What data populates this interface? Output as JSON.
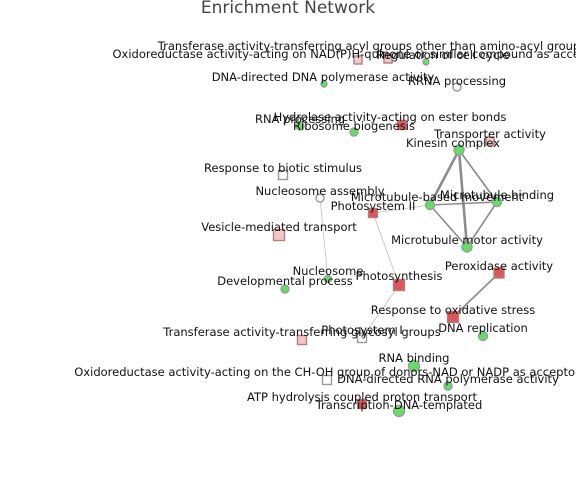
{
  "title": "Enrichment Network",
  "colors": {
    "green_fill": "#66dd66",
    "green_stroke": "#8aa88a",
    "red_fill": "#e05555",
    "red_stroke": "#b08080",
    "pink_fill": "#f5c6c6",
    "edge": "#808080"
  },
  "nodes": [
    {
      "id": "n1",
      "label": "Transferase activity-transferring acyl groups other than amino-acyl groups",
      "shape": "square",
      "color": "pink"
    },
    {
      "id": "n2",
      "label": "Oxidoreductase activity-acting on NAD(P)H-quinone or similar compound as acceptor",
      "shape": "square",
      "color": "pink"
    },
    {
      "id": "n3",
      "label": "Regulation of cell cycle",
      "shape": "circle",
      "color": "green"
    },
    {
      "id": "n4",
      "label": "DNA-directed DNA polymerase activity",
      "shape": "circle",
      "color": "green"
    },
    {
      "id": "n5",
      "label": "RRNA processing",
      "shape": "circle",
      "color": "white"
    },
    {
      "id": "n6",
      "label": "RNA processing",
      "shape": "circle",
      "color": "green"
    },
    {
      "id": "n7",
      "label": "Hydrolase activity-acting on ester bonds",
      "shape": "square",
      "color": "red"
    },
    {
      "id": "n8",
      "label": "Ribosome biogenesis",
      "shape": "circle",
      "color": "green"
    },
    {
      "id": "n9",
      "label": "Transporter activity",
      "shape": "square",
      "color": "pink"
    },
    {
      "id": "n10",
      "label": "Kinesin complex",
      "shape": "circle",
      "color": "green"
    },
    {
      "id": "n11",
      "label": "Response to biotic stimulus",
      "shape": "square",
      "color": "white"
    },
    {
      "id": "n12",
      "label": "Nucleosome assembly",
      "shape": "circle",
      "color": "white"
    },
    {
      "id": "n13",
      "label": "Microtubule-based movement",
      "shape": "circle",
      "color": "green"
    },
    {
      "id": "n14",
      "label": "Microtubule binding",
      "shape": "circle",
      "color": "green"
    },
    {
      "id": "n15",
      "label": "Photosystem II",
      "shape": "square",
      "color": "red"
    },
    {
      "id": "n16",
      "label": "Vesicle-mediated transport",
      "shape": "square",
      "color": "pink"
    },
    {
      "id": "n17",
      "label": "Microtubule motor activity",
      "shape": "circle",
      "color": "green"
    },
    {
      "id": "n18",
      "label": "Peroxidase activity",
      "shape": "square",
      "color": "red"
    },
    {
      "id": "n19",
      "label": "Nucleosome",
      "shape": "circle",
      "color": "green"
    },
    {
      "id": "n20",
      "label": "Photosynthesis",
      "shape": "square",
      "color": "red"
    },
    {
      "id": "n21",
      "label": "Developmental process",
      "shape": "circle",
      "color": "green"
    },
    {
      "id": "n22",
      "label": "Response to oxidative stress",
      "shape": "square",
      "color": "red"
    },
    {
      "id": "n23",
      "label": "DNA replication",
      "shape": "circle",
      "color": "green"
    },
    {
      "id": "n24",
      "label": "Transferase activity-transferring glycosyl groups",
      "shape": "square",
      "color": "pink"
    },
    {
      "id": "n25",
      "label": "Photosystem I",
      "shape": "square",
      "color": "white"
    },
    {
      "id": "n26",
      "label": "RNA binding",
      "shape": "circle",
      "color": "green"
    },
    {
      "id": "n27",
      "label": "Oxidoreductase activity-acting on the CH-OH group of donors-NAD or NADP as acceptor",
      "shape": "square",
      "color": "white"
    },
    {
      "id": "n28",
      "label": "DNA-directed RNA polymerase activity",
      "shape": "circle",
      "color": "green"
    },
    {
      "id": "n29",
      "label": "ATP hydrolysis coupled proton transport",
      "shape": "square",
      "color": "red"
    },
    {
      "id": "n30",
      "label": "Transcription-DNA-templated",
      "shape": "circle",
      "color": "green"
    }
  ],
  "edges": [
    {
      "source": "n10",
      "target": "n13",
      "weight": 3
    },
    {
      "source": "n10",
      "target": "n14",
      "weight": 2
    },
    {
      "source": "n10",
      "target": "n17",
      "weight": 3
    },
    {
      "source": "n13",
      "target": "n14",
      "weight": 2
    },
    {
      "source": "n13",
      "target": "n17",
      "weight": 2
    },
    {
      "source": "n14",
      "target": "n17",
      "weight": 2
    },
    {
      "source": "n10",
      "target": "n9",
      "weight": 1
    },
    {
      "source": "n14",
      "target": "n10",
      "weight": 1
    },
    {
      "source": "n15",
      "target": "n20",
      "weight": 1
    },
    {
      "source": "n20",
      "target": "n25",
      "weight": 1
    },
    {
      "source": "n12",
      "target": "n19",
      "weight": 1
    },
    {
      "source": "n18",
      "target": "n22",
      "weight": 2
    },
    {
      "source": "n13",
      "target": "n15",
      "weight": 1
    }
  ]
}
